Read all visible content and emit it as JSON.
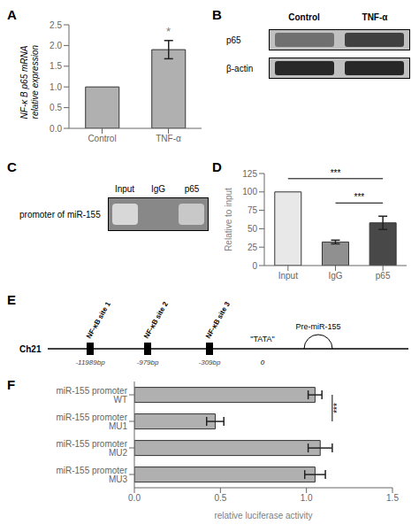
{
  "chart_data": [
    {
      "type": "bar",
      "title": "A",
      "categories": [
        "Control",
        "TNF-α"
      ],
      "values": [
        1.0,
        1.9
      ],
      "errors": [
        0.0,
        0.22
      ],
      "color": "#b0b0b0",
      "ylabel": "NF-κ B p65 mRNA\nrelative expression",
      "ylim": [
        0,
        2.5
      ],
      "yticks": [
        {
          "value": 0,
          "label": "0.0"
        },
        0.5,
        {
          "value": 1,
          "label": "1.0"
        },
        1.5,
        {
          "value": 2,
          "label": "2.0"
        },
        2.5
      ],
      "annotations": [
        {
          "text": "*",
          "category": "TNF-α"
        }
      ]
    },
    {
      "type": "blot",
      "title": "B",
      "categories": [
        "Control",
        "TNF-α"
      ],
      "annotations": [
        "p65",
        "β-actin"
      ]
    },
    {
      "type": "gel",
      "title": "C",
      "categories": [
        "Input",
        "IgG",
        "p65"
      ],
      "annotations": [
        "promoter of miR-155"
      ]
    },
    {
      "type": "bar",
      "title": "D",
      "categories": [
        "Input",
        "IgG",
        "p65"
      ],
      "values": [
        100,
        32,
        58
      ],
      "errors": [
        0,
        2.5,
        9
      ],
      "colors": [
        "#e8e8e8",
        "#909090",
        "#484848"
      ],
      "ylabel": "Relative to input",
      "ylim": [
        0,
        125
      ],
      "yticks": [
        0,
        25,
        50,
        75,
        100,
        125
      ],
      "annotations": [
        {
          "text": "***",
          "from": "Input",
          "to": "p65",
          "y": 118
        },
        {
          "text": "***",
          "from": "IgG",
          "to": "p65",
          "y": 85
        }
      ]
    },
    {
      "type": "diagram",
      "title": "E",
      "annotations": [
        "Ch21",
        "NF-κB site 1",
        "-11989bp",
        "NF-κB site 2",
        "-979bp",
        "NF-κB site 3",
        "-309bp",
        "\"TATA\"",
        "0",
        "Pre-miR-155"
      ]
    },
    {
      "type": "bar",
      "title": "F",
      "orientation": "horizontal",
      "categories": [
        "miR-155 promoter WT",
        "miR-155 promoter MU1",
        "miR-155 promoter MU2",
        "miR-155 promoter MU3"
      ],
      "values": [
        1.05,
        0.47,
        1.08,
        1.05
      ],
      "errors": [
        0.04,
        0.05,
        0.07,
        0.06
      ],
      "color": "#b0b0b0",
      "xlabel": "relative luciferase activity",
      "xlim": [
        0.0,
        1.5
      ],
      "xticks": [
        {
          "value": 0,
          "label": "0.0"
        },
        0.5,
        {
          "value": 1,
          "label": "1.0"
        },
        1.5
      ],
      "annotations": [
        {
          "text": "***",
          "from": "miR-155 promoter WT",
          "to": "miR-155 promoter MU1",
          "x": 1.15
        }
      ]
    }
  ]
}
